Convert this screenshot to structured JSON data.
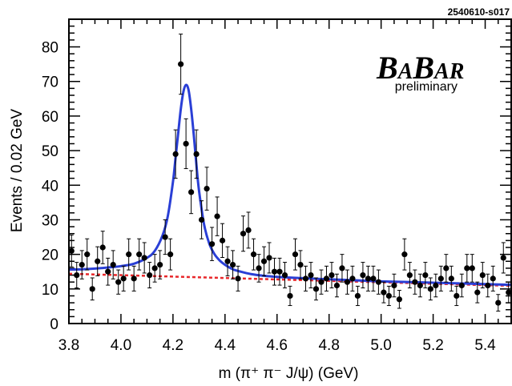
{
  "chart_data": {
    "type": "scatter",
    "title": "",
    "corner_label": "2540610-s017",
    "experiment_logo": [
      "B",
      "A",
      "B",
      "AR"
    ],
    "experiment_note": "preliminary",
    "xlabel": "m (π⁺ π⁻ J/ψ) (GeV)",
    "ylabel": "Events / 0.02 GeV",
    "xlim": [
      3.8,
      5.5
    ],
    "ylim": [
      0,
      88
    ],
    "xticks": [
      "3.8",
      "4.0",
      "4.2",
      "4.4",
      "4.6",
      "4.8",
      "5.0",
      "5.2",
      "5.4"
    ],
    "yticks": [
      "0",
      "10",
      "20",
      "30",
      "40",
      "50",
      "60",
      "70",
      "80"
    ],
    "grid": false,
    "series": [
      {
        "kind": "data-points-with-error-bars",
        "color": "#000000",
        "x": [
          3.81,
          3.83,
          3.85,
          3.87,
          3.89,
          3.91,
          3.93,
          3.95,
          3.97,
          3.99,
          4.01,
          4.03,
          4.05,
          4.07,
          4.09,
          4.11,
          4.13,
          4.15,
          4.17,
          4.19,
          4.21,
          4.23,
          4.25,
          4.27,
          4.29,
          4.31,
          4.33,
          4.35,
          4.37,
          4.39,
          4.41,
          4.43,
          4.45,
          4.47,
          4.49,
          4.51,
          4.53,
          4.55,
          4.57,
          4.59,
          4.61,
          4.63,
          4.65,
          4.67,
          4.69,
          4.71,
          4.73,
          4.75,
          4.77,
          4.79,
          4.81,
          4.83,
          4.85,
          4.87,
          4.89,
          4.91,
          4.93,
          4.95,
          4.97,
          4.99,
          5.01,
          5.03,
          5.05,
          5.07,
          5.09,
          5.11,
          5.13,
          5.15,
          5.17,
          5.19,
          5.21,
          5.23,
          5.25,
          5.27,
          5.29,
          5.31,
          5.33,
          5.35,
          5.37,
          5.39,
          5.41,
          5.43,
          5.45,
          5.47,
          5.49
        ],
        "y": [
          21,
          14,
          17,
          20,
          10,
          18,
          22,
          15,
          17,
          12,
          13,
          20,
          13,
          20,
          19,
          14,
          16,
          17,
          25,
          20,
          49,
          75,
          52,
          38,
          49,
          30,
          39,
          23,
          31,
          24,
          18,
          17,
          13,
          26,
          27,
          20,
          16,
          18,
          19,
          15,
          15,
          14,
          8,
          20,
          17,
          13,
          14,
          10,
          12,
          13,
          14,
          11,
          16,
          12,
          13,
          8,
          14,
          13,
          13,
          12,
          9,
          8,
          11,
          7,
          20,
          14,
          12,
          11,
          14,
          10,
          11,
          13,
          16,
          13,
          8,
          11,
          16,
          16,
          9,
          14,
          11,
          13,
          6,
          19,
          9
        ],
        "err": [
          4.6,
          3.7,
          4.1,
          4.5,
          3.2,
          4.2,
          4.7,
          3.9,
          4.1,
          3.5,
          3.6,
          4.5,
          3.6,
          4.5,
          4.4,
          3.7,
          4.0,
          4.1,
          5.0,
          4.5,
          7.0,
          8.7,
          7.2,
          6.2,
          7.0,
          5.5,
          6.2,
          4.8,
          5.6,
          4.9,
          4.2,
          4.1,
          3.6,
          5.1,
          5.2,
          4.5,
          4.0,
          4.2,
          4.4,
          3.9,
          3.9,
          3.7,
          2.8,
          4.5,
          4.1,
          3.6,
          3.7,
          3.2,
          3.5,
          3.6,
          3.7,
          3.3,
          4.0,
          3.5,
          3.6,
          2.8,
          3.7,
          3.6,
          3.6,
          3.5,
          3.0,
          2.8,
          3.3,
          2.6,
          4.5,
          3.7,
          3.5,
          3.3,
          3.7,
          3.2,
          3.3,
          3.6,
          4.0,
          3.6,
          2.8,
          3.3,
          4.0,
          4.0,
          3.0,
          3.7,
          3.3,
          3.6,
          2.4,
          4.4,
          3.0
        ]
      },
      {
        "kind": "fit-total",
        "color": "#2a3fd6",
        "x": [
          3.8,
          3.85,
          3.9,
          3.95,
          4.0,
          4.05,
          4.1,
          4.13,
          4.16,
          4.18,
          4.2,
          4.21,
          4.22,
          4.23,
          4.24,
          4.25,
          4.26,
          4.27,
          4.28,
          4.29,
          4.3,
          4.32,
          4.34,
          4.36,
          4.38,
          4.4,
          4.43,
          4.46,
          4.5,
          4.55,
          4.6,
          4.7,
          4.8,
          4.9,
          5.0,
          5.1,
          5.2,
          5.3,
          5.4,
          5.5
        ],
        "y": [
          15.6,
          15.7,
          15.9,
          16.2,
          16.6,
          17.3,
          19.0,
          21.0,
          25.5,
          31.0,
          41.0,
          48.0,
          55.0,
          62.0,
          67.0,
          69.0,
          67.5,
          62.0,
          54.5,
          46.0,
          38.5,
          28.5,
          23.0,
          20.0,
          18.2,
          17.0,
          15.7,
          15.0,
          14.3,
          13.8,
          13.5,
          13.1,
          12.8,
          12.5,
          12.2,
          12.0,
          11.8,
          11.6,
          11.4,
          11.2
        ]
      },
      {
        "kind": "fit-background",
        "color": "#e8272a",
        "x": [
          3.8,
          5.5
        ],
        "y": [
          14.4,
          10.9
        ]
      }
    ]
  }
}
